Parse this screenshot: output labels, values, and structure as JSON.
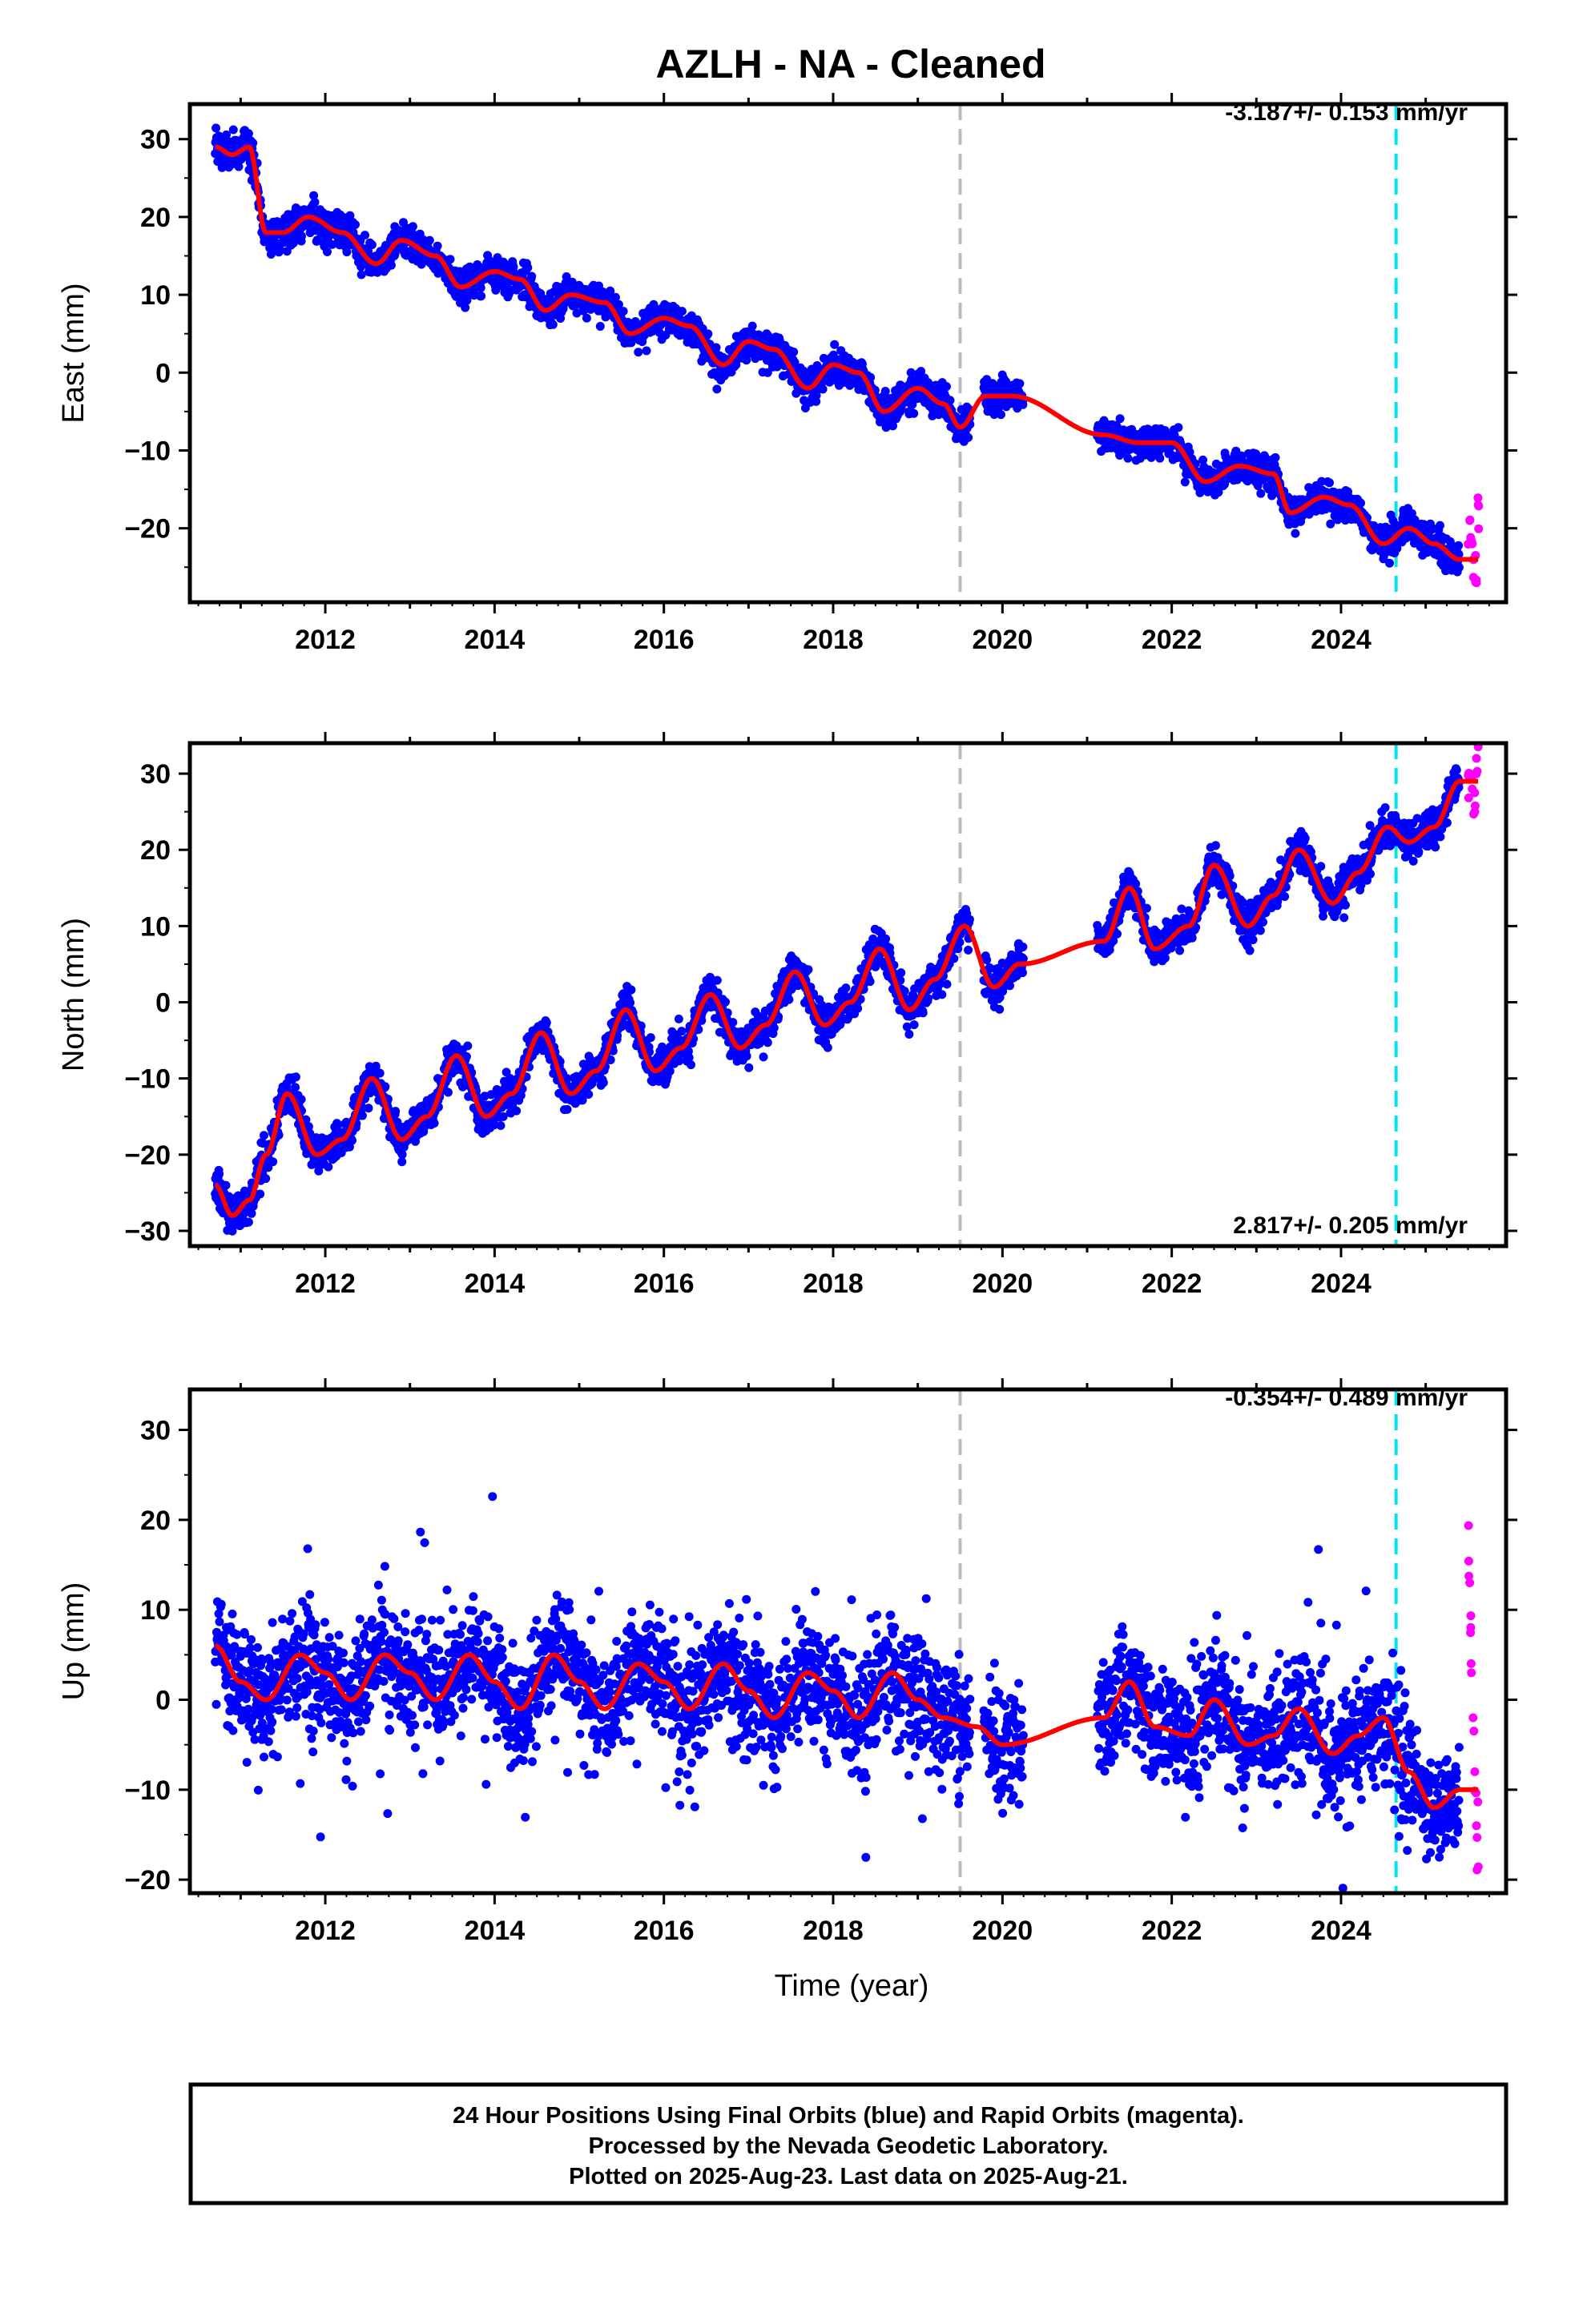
{
  "title": "AZLH  - NA - Cleaned",
  "colors": {
    "final_orbits": "#0000ff",
    "rapid_orbits": "#ff00ff",
    "model": "#ff0000",
    "gray_marker": "#bbbbbb",
    "cyan_marker": "#00e5ee"
  },
  "chart_data": [
    {
      "type": "scatter",
      "component": "East",
      "ylabel": "East (mm)",
      "xlim": [
        2010.4,
        2025.95
      ],
      "ylim": [
        -29.5,
        34.5
      ],
      "x_ticks": [
        2012,
        2014,
        2016,
        2018,
        2020,
        2022,
        2024
      ],
      "y_ticks": [
        -20,
        -10,
        0,
        10,
        20,
        30
      ],
      "rate_label": "-3.187+/- 0.153 mm/yr",
      "rate_position": "top-right",
      "vertical_markers": [
        {
          "x": 2019.5,
          "color": "gray"
        },
        {
          "x": 2024.65,
          "color": "cyan"
        }
      ],
      "series": [
        {
          "kind": "final",
          "approx_values": [
            [
              2010.7,
              29
            ],
            [
              2010.9,
              28
            ],
            [
              2011.1,
              29
            ],
            [
              2011.3,
              18
            ],
            [
              2011.5,
              18
            ],
            [
              2011.8,
              20
            ],
            [
              2012.2,
              18
            ],
            [
              2012.6,
              14
            ],
            [
              2012.9,
              17
            ],
            [
              2013.3,
              15
            ],
            [
              2013.6,
              11
            ],
            [
              2014.0,
              13
            ],
            [
              2014.3,
              12
            ],
            [
              2014.6,
              8
            ],
            [
              2014.9,
              10
            ],
            [
              2015.3,
              9
            ],
            [
              2015.6,
              5
            ],
            [
              2016.0,
              7
            ],
            [
              2016.3,
              6
            ],
            [
              2016.7,
              1
            ],
            [
              2017.0,
              4
            ],
            [
              2017.3,
              3
            ],
            [
              2017.7,
              -2
            ],
            [
              2018.0,
              1
            ],
            [
              2018.3,
              0
            ],
            [
              2018.6,
              -5
            ],
            [
              2019.0,
              -2
            ],
            [
              2019.3,
              -4
            ],
            [
              2019.5,
              -7
            ],
            [
              2019.8,
              -3
            ],
            [
              2020.1,
              -3
            ],
            [
              2021.2,
              -8
            ],
            [
              2021.6,
              -9
            ],
            [
              2022.0,
              -9
            ],
            [
              2022.4,
              -14
            ],
            [
              2022.8,
              -12
            ],
            [
              2023.2,
              -13
            ],
            [
              2023.4,
              -18
            ],
            [
              2023.8,
              -16
            ],
            [
              2024.1,
              -17
            ],
            [
              2024.5,
              -22
            ],
            [
              2024.8,
              -20
            ],
            [
              2025.1,
              -22
            ],
            [
              2025.4,
              -24
            ]
          ]
        },
        {
          "kind": "rapid",
          "approx_values": [
            [
              2025.52,
              -19
            ],
            [
              2025.55,
              -22
            ],
            [
              2025.57,
              -24
            ],
            [
              2025.6,
              -27
            ],
            [
              2025.62,
              -17
            ]
          ]
        }
      ]
    },
    {
      "type": "scatter",
      "component": "North",
      "ylabel": "North (mm)",
      "xlim": [
        2010.4,
        2025.95
      ],
      "ylim": [
        -32,
        34
      ],
      "x_ticks": [
        2012,
        2014,
        2016,
        2018,
        2020,
        2022,
        2024
      ],
      "y_ticks": [
        -30,
        -20,
        -10,
        0,
        10,
        20,
        30
      ],
      "rate_label": "2.817+/- 0.205 mm/yr",
      "rate_position": "bottom-right",
      "vertical_markers": [
        {
          "x": 2019.5,
          "color": "gray"
        },
        {
          "x": 2024.65,
          "color": "cyan"
        }
      ],
      "series": [
        {
          "kind": "final",
          "approx_values": [
            [
              2010.7,
              -24
            ],
            [
              2010.9,
              -28
            ],
            [
              2011.1,
              -26
            ],
            [
              2011.3,
              -20
            ],
            [
              2011.55,
              -12
            ],
            [
              2011.9,
              -20
            ],
            [
              2012.2,
              -18
            ],
            [
              2012.55,
              -10
            ],
            [
              2012.9,
              -18
            ],
            [
              2013.2,
              -15
            ],
            [
              2013.55,
              -7
            ],
            [
              2013.9,
              -15
            ],
            [
              2014.2,
              -12
            ],
            [
              2014.55,
              -4
            ],
            [
              2014.9,
              -12
            ],
            [
              2015.2,
              -9
            ],
            [
              2015.55,
              -1
            ],
            [
              2015.9,
              -9
            ],
            [
              2016.2,
              -6
            ],
            [
              2016.55,
              1
            ],
            [
              2016.9,
              -6
            ],
            [
              2017.2,
              -3
            ],
            [
              2017.55,
              4
            ],
            [
              2017.9,
              -3
            ],
            [
              2018.2,
              0
            ],
            [
              2018.55,
              7
            ],
            [
              2018.9,
              -1
            ],
            [
              2019.2,
              3
            ],
            [
              2019.55,
              10
            ],
            [
              2019.9,
              2
            ],
            [
              2020.2,
              5
            ],
            [
              2021.2,
              8
            ],
            [
              2021.5,
              15
            ],
            [
              2021.8,
              7
            ],
            [
              2022.2,
              10
            ],
            [
              2022.5,
              18
            ],
            [
              2022.9,
              10
            ],
            [
              2023.2,
              14
            ],
            [
              2023.5,
              20
            ],
            [
              2023.9,
              13
            ],
            [
              2024.2,
              17
            ],
            [
              2024.55,
              23
            ],
            [
              2024.8,
              21
            ],
            [
              2025.1,
              23
            ],
            [
              2025.4,
              29
            ]
          ]
        },
        {
          "kind": "rapid",
          "approx_values": [
            [
              2025.52,
              30
            ],
            [
              2025.55,
              28
            ],
            [
              2025.58,
              25
            ],
            [
              2025.6,
              32
            ]
          ]
        }
      ]
    },
    {
      "type": "scatter",
      "component": "Up",
      "ylabel": "Up (mm)",
      "xlim": [
        2010.4,
        2025.95
      ],
      "ylim": [
        -21.5,
        34.5
      ],
      "x_ticks": [
        2012,
        2014,
        2016,
        2018,
        2020,
        2022,
        2024
      ],
      "y_ticks": [
        -20,
        -10,
        0,
        10,
        20,
        30
      ],
      "xlabel": "Time (year)",
      "rate_label": "-0.354+/- 0.489 mm/yr",
      "rate_position": "top-right",
      "vertical_markers": [
        {
          "x": 2019.5,
          "color": "gray"
        },
        {
          "x": 2024.65,
          "color": "cyan"
        }
      ],
      "series": [
        {
          "kind": "final",
          "approx_values": [
            [
              2010.7,
              6
            ],
            [
              2011.0,
              2
            ],
            [
              2011.3,
              0
            ],
            [
              2011.7,
              5
            ],
            [
              2012.0,
              3
            ],
            [
              2012.3,
              0
            ],
            [
              2012.7,
              5
            ],
            [
              2013.0,
              3
            ],
            [
              2013.3,
              0
            ],
            [
              2013.7,
              5
            ],
            [
              2014.0,
              2
            ],
            [
              2014.3,
              -1
            ],
            [
              2014.7,
              5
            ],
            [
              2015.0,
              2
            ],
            [
              2015.3,
              -1
            ],
            [
              2015.7,
              4
            ],
            [
              2016.0,
              2
            ],
            [
              2016.3,
              -1
            ],
            [
              2016.7,
              4
            ],
            [
              2017.0,
              1
            ],
            [
              2017.3,
              -2
            ],
            [
              2017.7,
              3
            ],
            [
              2018.0,
              1
            ],
            [
              2018.3,
              -2
            ],
            [
              2018.7,
              3
            ],
            [
              2019.0,
              0
            ],
            [
              2019.3,
              -2
            ],
            [
              2019.7,
              -3
            ],
            [
              2020.0,
              -5
            ],
            [
              2021.2,
              -2
            ],
            [
              2021.5,
              2
            ],
            [
              2021.8,
              -3
            ],
            [
              2022.2,
              -4
            ],
            [
              2022.5,
              0
            ],
            [
              2022.9,
              -5
            ],
            [
              2023.2,
              -4
            ],
            [
              2023.5,
              -1
            ],
            [
              2023.9,
              -6
            ],
            [
              2024.2,
              -4
            ],
            [
              2024.5,
              -2
            ],
            [
              2024.8,
              -8
            ],
            [
              2025.1,
              -12
            ],
            [
              2025.4,
              -10
            ]
          ]
        },
        {
          "kind": "rapid",
          "approx_values": [
            [
              2025.52,
              13
            ],
            [
              2025.54,
              3
            ],
            [
              2025.56,
              -2
            ],
            [
              2025.58,
              -8
            ],
            [
              2025.6,
              -14
            ]
          ]
        }
      ]
    }
  ],
  "footer": {
    "line1": "24 Hour Positions Using Final Orbits (blue) and Rapid Orbits (magenta).",
    "line2": "Processed by the Nevada Geodetic Laboratory.",
    "line3": "Plotted on 2025-Aug-23. Last data on 2025-Aug-21."
  }
}
